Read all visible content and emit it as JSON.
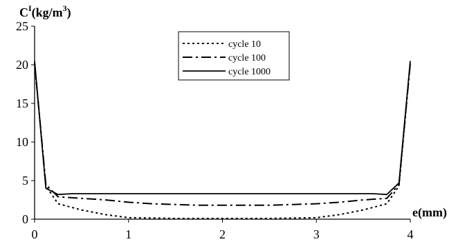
{
  "chart_data": {
    "type": "line",
    "xlabel": "e(mm)",
    "ylabel_main": "C",
    "ylabel_sup": "I",
    "ylabel_rest": "(kg/m",
    "ylabel_unit_sup": "3",
    "ylabel_close": ")",
    "xlim": [
      0,
      4
    ],
    "ylim": [
      0,
      25
    ],
    "xticks": [
      "0",
      "1",
      "2",
      "3",
      "4"
    ],
    "yticks": [
      "0",
      "5",
      "10",
      "15",
      "20",
      "25"
    ],
    "grid": false,
    "legend_position": "top-center",
    "series": [
      {
        "name": "cycle 10",
        "style": "dotted",
        "x": [
          0,
          0.12,
          0.25,
          0.5,
          0.75,
          1.0,
          1.5,
          2.0,
          2.5,
          3.0,
          3.25,
          3.5,
          3.75,
          3.88,
          4.0
        ],
        "y": [
          20.2,
          4.3,
          2.0,
          1.2,
          0.6,
          0.2,
          0.1,
          0.1,
          0.1,
          0.2,
          0.6,
          1.2,
          2.0,
          4.3,
          20.2
        ]
      },
      {
        "name": "cycle 100",
        "style": "dashdot",
        "x": [
          0,
          0.12,
          0.25,
          0.5,
          0.75,
          1.0,
          1.25,
          1.5,
          1.75,
          2.0,
          2.25,
          2.5,
          2.75,
          3.0,
          3.25,
          3.5,
          3.75,
          3.88,
          4.0
        ],
        "y": [
          20.2,
          4.5,
          2.9,
          2.7,
          2.5,
          2.2,
          2.0,
          1.9,
          1.8,
          1.8,
          1.8,
          1.8,
          1.9,
          2.0,
          2.2,
          2.5,
          2.7,
          4.5,
          20.2
        ]
      },
      {
        "name": "cycle 1000",
        "style": "solid",
        "x": [
          0,
          0.12,
          0.25,
          0.4,
          1.0,
          2.0,
          3.0,
          3.6,
          3.75,
          3.88,
          4.0
        ],
        "y": [
          20.5,
          4.0,
          3.2,
          3.3,
          3.3,
          3.3,
          3.3,
          3.3,
          3.2,
          4.7,
          20.5
        ]
      }
    ]
  }
}
